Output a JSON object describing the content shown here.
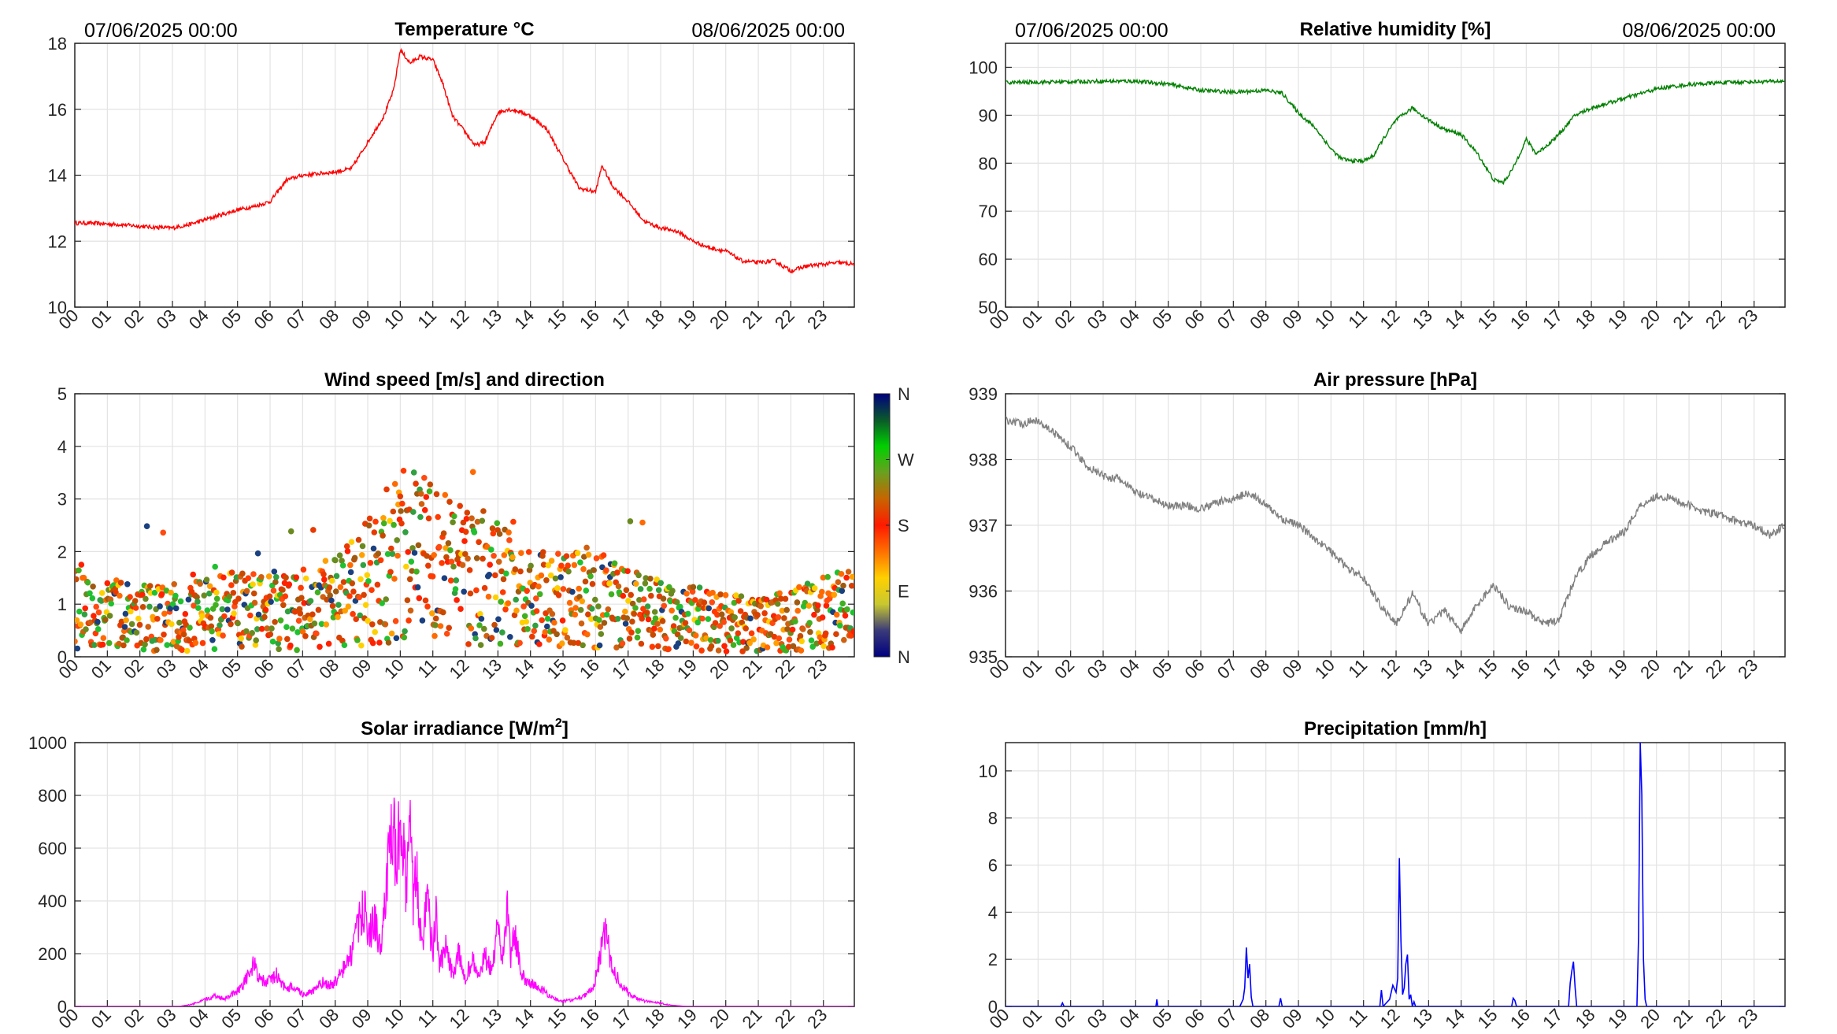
{
  "hour_labels": [
    "00",
    "01",
    "02",
    "03",
    "04",
    "05",
    "06",
    "07",
    "08",
    "09",
    "10",
    "11",
    "12",
    "13",
    "14",
    "15",
    "16",
    "17",
    "18",
    "19",
    "20",
    "21",
    "22",
    "23"
  ],
  "colors": {
    "temperature": "#ff0000",
    "humidity": "#008000",
    "pressure": "#808080",
    "solar": "#ff00ff",
    "precipitation": "#0000ff",
    "grid": "#e3e3e3",
    "axis": "#262626"
  },
  "wind_colorbar": {
    "labels": [
      "N",
      "W",
      "S",
      "E",
      "N"
    ],
    "gradient": [
      "#00007f",
      "#0a5a2a",
      "#00d000",
      "#6aa020",
      "#c86400",
      "#ff1a00",
      "#ff7000",
      "#ffd000",
      "#c8c830",
      "#3a3a7a",
      "#00007f"
    ]
  },
  "chart_data": [
    {
      "id": "temperature",
      "type": "line",
      "title": "Temperature °C",
      "start_label": "07/06/2025 00:00",
      "end_label": "08/06/2025 00:00",
      "ylim": [
        10,
        18
      ],
      "yticks": [
        10,
        12,
        14,
        16,
        18
      ],
      "grid": true,
      "x": [
        0,
        0.5,
        1,
        1.5,
        2,
        2.5,
        3,
        3.5,
        4,
        4.5,
        5,
        5.5,
        6,
        6.5,
        7,
        7.5,
        8,
        8.5,
        9,
        9.5,
        9.8,
        10,
        10.3,
        10.6,
        11,
        11.3,
        11.6,
        12,
        12.3,
        12.6,
        13,
        13.3,
        13.6,
        14,
        14.5,
        15,
        15.5,
        16,
        16.2,
        16.5,
        17,
        17.5,
        18,
        18.5,
        19,
        19.5,
        20,
        20.5,
        21,
        21.5,
        22,
        22.5,
        23,
        23.5,
        23.95
      ],
      "y": [
        12.55,
        12.55,
        12.52,
        12.5,
        12.45,
        12.42,
        12.4,
        12.5,
        12.65,
        12.8,
        12.95,
        13.05,
        13.2,
        13.85,
        14.0,
        14.05,
        14.1,
        14.2,
        15.0,
        15.8,
        16.6,
        17.8,
        17.4,
        17.6,
        17.5,
        16.8,
        15.8,
        15.3,
        14.9,
        15.0,
        15.9,
        16.0,
        15.95,
        15.8,
        15.4,
        14.5,
        13.6,
        13.5,
        14.3,
        13.7,
        13.2,
        12.6,
        12.4,
        12.3,
        12.0,
        11.8,
        11.7,
        11.4,
        11.35,
        11.4,
        11.1,
        11.25,
        11.3,
        11.35,
        11.3
      ]
    },
    {
      "id": "humidity",
      "type": "line",
      "title": "Relative humidity [%]",
      "start_label": "07/06/2025 00:00",
      "end_label": "08/06/2025 00:00",
      "ylim": [
        50,
        105
      ],
      "yticks": [
        50,
        60,
        70,
        80,
        90,
        100
      ],
      "grid": true,
      "x": [
        0,
        1,
        2,
        3,
        4,
        5,
        6,
        7,
        8,
        8.5,
        9,
        9.5,
        10,
        10.3,
        10.6,
        11,
        11.3,
        11.6,
        12,
        12.5,
        13,
        13.5,
        14,
        14.5,
        15,
        15.3,
        15.6,
        16,
        16.3,
        16.6,
        17,
        17.5,
        18,
        18.5,
        19,
        19.5,
        20,
        20.5,
        21,
        21.5,
        22,
        22.5,
        23,
        23.95
      ],
      "y": [
        96.8,
        96.9,
        97.0,
        97.1,
        97.1,
        96.5,
        95.2,
        94.8,
        95.2,
        94.6,
        90.5,
        87.5,
        83.0,
        81.0,
        80.5,
        80.5,
        81.5,
        85.0,
        89.0,
        91.5,
        89.0,
        87.0,
        86.0,
        82.0,
        76.5,
        76.0,
        79.0,
        85.0,
        82.0,
        83.5,
        86.0,
        90.0,
        91.5,
        92.5,
        93.5,
        94.5,
        95.5,
        96.0,
        96.4,
        96.6,
        96.8,
        96.9,
        97.0,
        97.1
      ]
    },
    {
      "id": "wind",
      "type": "scatter",
      "title": "Wind speed [m/s] and direction",
      "ylim": [
        0,
        5
      ],
      "yticks": [
        0,
        1,
        2,
        3,
        4,
        5
      ],
      "grid": true,
      "colorbar": [
        "N",
        "W",
        "S",
        "E",
        "N"
      ],
      "envelope": {
        "x": [
          0,
          1,
          2,
          3,
          4,
          5,
          6,
          7,
          8,
          9,
          10,
          11,
          12,
          13,
          14,
          15,
          16,
          17,
          18,
          19,
          20,
          21,
          22,
          23,
          24
        ],
        "y": [
          1.0,
          0.8,
          0.75,
          0.7,
          0.8,
          0.9,
          0.9,
          0.85,
          1.0,
          1.4,
          2.0,
          1.8,
          1.5,
          1.4,
          1.1,
          1.1,
          1.1,
          0.9,
          0.8,
          0.75,
          0.65,
          0.6,
          0.7,
          0.85,
          0.9
        ]
      }
    },
    {
      "id": "pressure",
      "type": "line",
      "title": "Air pressure [hPa]",
      "ylim": [
        935,
        939
      ],
      "yticks": [
        935,
        936,
        937,
        938,
        939
      ],
      "grid": true,
      "x": [
        0,
        0.5,
        1,
        1.5,
        2,
        2.5,
        3,
        3.5,
        4,
        4.5,
        5,
        5.5,
        6,
        6.5,
        7,
        7.5,
        8,
        8.5,
        9,
        9.5,
        10,
        10.5,
        11,
        11.5,
        12,
        12.5,
        13,
        13.5,
        14,
        14.5,
        15,
        15.5,
        16,
        16.5,
        17,
        17.5,
        18,
        18.5,
        19,
        19.5,
        20,
        20.5,
        21,
        21.5,
        22,
        22.5,
        23,
        23.5,
        23.95
      ],
      "y": [
        938.6,
        938.55,
        938.6,
        938.4,
        938.2,
        937.9,
        937.75,
        937.7,
        937.5,
        937.4,
        937.3,
        937.3,
        937.25,
        937.35,
        937.4,
        937.5,
        937.3,
        937.1,
        937.0,
        936.8,
        936.6,
        936.35,
        936.2,
        935.8,
        935.5,
        935.95,
        935.5,
        935.7,
        935.4,
        935.8,
        936.1,
        935.75,
        935.7,
        935.5,
        935.55,
        936.2,
        936.55,
        936.75,
        936.9,
        937.3,
        937.45,
        937.4,
        937.3,
        937.2,
        937.15,
        937.05,
        937.0,
        936.85,
        937.0
      ]
    },
    {
      "id": "solar",
      "type": "area",
      "title": "Solar irradiance [W/m",
      "title_sup": "2",
      "title_end": "]",
      "ylim": [
        0,
        1000
      ],
      "yticks": [
        0,
        200,
        400,
        600,
        800,
        1000
      ],
      "grid": true,
      "x": [
        0,
        3.2,
        3.6,
        4.0,
        4.3,
        4.6,
        5.0,
        5.3,
        5.5,
        5.7,
        5.9,
        6.2,
        6.5,
        6.7,
        7.0,
        7.3,
        7.6,
        7.9,
        8.1,
        8.3,
        8.5,
        8.7,
        8.9,
        9.0,
        9.2,
        9.4,
        9.6,
        9.8,
        9.9,
        10.0,
        10.1,
        10.2,
        10.3,
        10.4,
        10.5,
        10.6,
        10.7,
        10.8,
        10.9,
        11.0,
        11.1,
        11.2,
        11.4,
        11.6,
        11.8,
        12.0,
        12.2,
        12.4,
        12.6,
        12.8,
        13.0,
        13.1,
        13.2,
        13.3,
        13.4,
        13.5,
        13.6,
        13.7,
        13.9,
        14.1,
        14.4,
        14.7,
        15.0,
        15.3,
        15.6,
        15.9,
        16.1,
        16.3,
        16.5,
        16.8,
        17.1,
        17.5,
        17.9,
        18.3,
        18.8,
        23.95
      ],
      "y": [
        0,
        0,
        8,
        25,
        40,
        30,
        60,
        110,
        160,
        100,
        90,
        120,
        60,
        80,
        45,
        55,
        90,
        80,
        110,
        150,
        200,
        300,
        380,
        260,
        330,
        200,
        520,
        680,
        450,
        840,
        600,
        420,
        700,
        380,
        520,
        300,
        260,
        440,
        320,
        200,
        350,
        150,
        220,
        120,
        200,
        100,
        180,
        110,
        190,
        130,
        300,
        160,
        250,
        380,
        170,
        300,
        220,
        120,
        100,
        80,
        60,
        30,
        20,
        25,
        40,
        60,
        170,
        280,
        150,
        80,
        40,
        20,
        15,
        5,
        0,
        0
      ]
    },
    {
      "id": "precipitation",
      "type": "line",
      "title": "Precipitation [mm/h]",
      "ylim": [
        0,
        11.2
      ],
      "yticks": [
        0,
        2,
        4,
        6,
        8,
        10
      ],
      "grid": true,
      "x": [
        0,
        1.7,
        1.75,
        1.8,
        4.62,
        4.65,
        4.68,
        7.2,
        7.3,
        7.35,
        7.4,
        7.45,
        7.5,
        7.55,
        7.6,
        7.7,
        8.4,
        8.45,
        8.5,
        11.5,
        11.55,
        11.6,
        11.8,
        11.9,
        12.0,
        12.05,
        12.1,
        12.15,
        12.2,
        12.25,
        12.3,
        12.35,
        12.4,
        12.45,
        12.5,
        12.55,
        12.6,
        15.55,
        15.6,
        15.65,
        15.7,
        17.3,
        17.35,
        17.4,
        17.45,
        17.5,
        17.55,
        19.4,
        19.45,
        19.5,
        19.55,
        19.6,
        19.65,
        19.7,
        23.95
      ],
      "y": [
        0,
        0,
        0.15,
        0,
        0,
        0.3,
        0,
        0,
        0.3,
        0.8,
        2.5,
        1.2,
        1.8,
        0.4,
        0,
        0,
        0,
        0.35,
        0,
        0,
        0.7,
        0,
        0.3,
        0.9,
        0.6,
        1.2,
        6.3,
        2.8,
        0.5,
        0.8,
        1.8,
        2.2,
        0.3,
        0.5,
        0,
        0.2,
        0,
        0,
        0.35,
        0.25,
        0,
        0,
        1.0,
        1.5,
        1.9,
        0.8,
        0,
        0,
        3.0,
        11.2,
        9.0,
        2.0,
        0.3,
        0,
        0
      ]
    }
  ]
}
